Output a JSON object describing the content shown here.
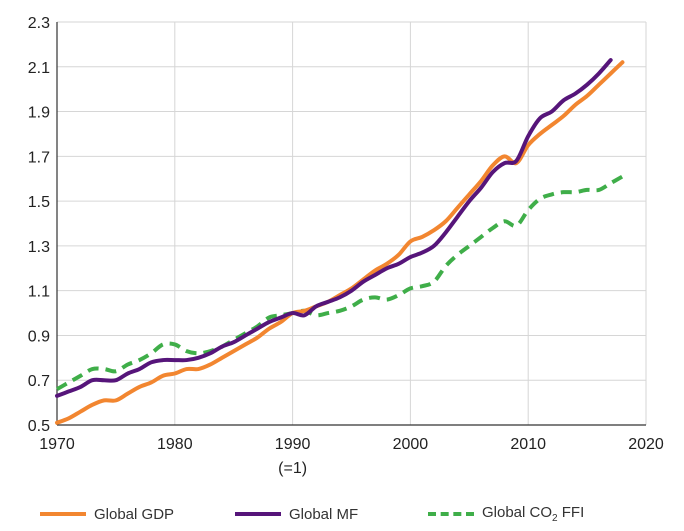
{
  "chart_data": {
    "type": "line",
    "xlim": [
      1970,
      2020
    ],
    "ylim": [
      0.5,
      2.3
    ],
    "x_ticks": [
      1970,
      1980,
      1990,
      2000,
      2010,
      2020
    ],
    "y_ticks": [
      0.5,
      0.7,
      0.9,
      1.1,
      1.3,
      1.5,
      1.7,
      1.9,
      2.1,
      2.3
    ],
    "y_tick_labels": [
      "0.5",
      "0.7",
      "0.9",
      "1.1",
      "1.3",
      "1.5",
      "1.7",
      "1.9",
      "2.1",
      "2.3"
    ],
    "x_tick_labels": [
      "1970",
      "1980",
      "1990",
      "2000",
      "2010",
      "2020"
    ],
    "x_annotation": "(=1)",
    "grid": true,
    "legend_position": "bottom",
    "series": [
      {
        "name": "Global GDP",
        "color": "#f28630",
        "style": "solid",
        "x": [
          1970,
          1971,
          1972,
          1973,
          1974,
          1975,
          1976,
          1977,
          1978,
          1979,
          1980,
          1981,
          1982,
          1983,
          1984,
          1985,
          1986,
          1987,
          1988,
          1989,
          1990,
          1991,
          1992,
          1993,
          1994,
          1995,
          1996,
          1997,
          1998,
          1999,
          2000,
          2001,
          2002,
          2003,
          2004,
          2005,
          2006,
          2007,
          2008,
          2009,
          2010,
          2011,
          2012,
          2013,
          2014,
          2015,
          2016,
          2017,
          2018
        ],
        "values": [
          0.51,
          0.53,
          0.56,
          0.59,
          0.61,
          0.61,
          0.64,
          0.67,
          0.69,
          0.72,
          0.73,
          0.75,
          0.75,
          0.77,
          0.8,
          0.83,
          0.86,
          0.89,
          0.93,
          0.96,
          1.0,
          1.01,
          1.03,
          1.05,
          1.08,
          1.11,
          1.15,
          1.19,
          1.22,
          1.26,
          1.32,
          1.34,
          1.37,
          1.41,
          1.47,
          1.53,
          1.59,
          1.66,
          1.7,
          1.67,
          1.75,
          1.8,
          1.84,
          1.88,
          1.93,
          1.97,
          2.02,
          2.07,
          2.12
        ]
      },
      {
        "name": "Global MF",
        "color": "#56157a",
        "style": "solid",
        "x": [
          1970,
          1971,
          1972,
          1973,
          1974,
          1975,
          1976,
          1977,
          1978,
          1979,
          1980,
          1981,
          1982,
          1983,
          1984,
          1985,
          1986,
          1987,
          1988,
          1989,
          1990,
          1991,
          1992,
          1993,
          1994,
          1995,
          1996,
          1997,
          1998,
          1999,
          2000,
          2001,
          2002,
          2003,
          2004,
          2005,
          2006,
          2007,
          2008,
          2009,
          2010,
          2011,
          2012,
          2013,
          2014,
          2015,
          2016,
          2017
        ],
        "values": [
          0.63,
          0.65,
          0.67,
          0.7,
          0.7,
          0.7,
          0.73,
          0.75,
          0.78,
          0.79,
          0.79,
          0.79,
          0.8,
          0.82,
          0.85,
          0.87,
          0.9,
          0.93,
          0.96,
          0.98,
          1.0,
          0.99,
          1.03,
          1.05,
          1.07,
          1.1,
          1.14,
          1.17,
          1.2,
          1.22,
          1.25,
          1.27,
          1.3,
          1.36,
          1.43,
          1.5,
          1.56,
          1.63,
          1.67,
          1.68,
          1.79,
          1.87,
          1.9,
          1.95,
          1.98,
          2.02,
          2.07,
          2.13
        ]
      },
      {
        "name": "Global CO2 FFI",
        "color": "#3fae49",
        "style": "dashed",
        "x": [
          1970,
          1971,
          1972,
          1973,
          1974,
          1975,
          1976,
          1977,
          1978,
          1979,
          1980,
          1981,
          1982,
          1983,
          1984,
          1985,
          1986,
          1987,
          1988,
          1989,
          1990,
          1991,
          1992,
          1993,
          1994,
          1995,
          1996,
          1997,
          1998,
          1999,
          2000,
          2001,
          2002,
          2003,
          2004,
          2005,
          2006,
          2007,
          2008,
          2009,
          2010,
          2011,
          2012,
          2013,
          2014,
          2015,
          2016,
          2017,
          2018
        ],
        "values": [
          0.66,
          0.69,
          0.72,
          0.75,
          0.75,
          0.74,
          0.77,
          0.79,
          0.82,
          0.86,
          0.86,
          0.83,
          0.82,
          0.83,
          0.85,
          0.88,
          0.91,
          0.94,
          0.98,
          0.99,
          1.0,
          1.01,
          0.99,
          1.0,
          1.01,
          1.03,
          1.06,
          1.07,
          1.06,
          1.08,
          1.11,
          1.12,
          1.14,
          1.21,
          1.26,
          1.3,
          1.34,
          1.38,
          1.41,
          1.39,
          1.46,
          1.51,
          1.53,
          1.54,
          1.54,
          1.55,
          1.55,
          1.58,
          1.61
        ]
      }
    ]
  },
  "legend": {
    "items": [
      {
        "label": "Global GDP",
        "color": "#f28630",
        "style": "solid"
      },
      {
        "label": "Global MF",
        "color": "#56157a",
        "style": "solid"
      },
      {
        "label_main": "Global CO",
        "label_sub": "2",
        "label_tail": " FFI",
        "color": "#3fae49",
        "style": "dashed"
      }
    ]
  }
}
